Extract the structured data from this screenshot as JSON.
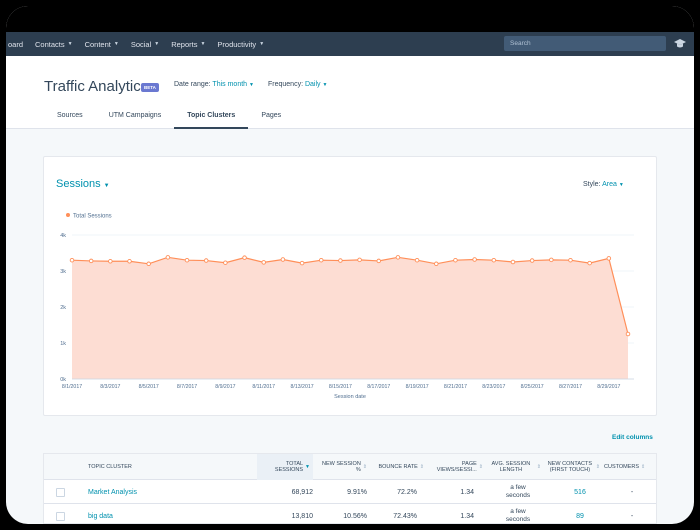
{
  "nav": {
    "items": [
      {
        "label": "oard",
        "caret": false
      },
      {
        "label": "Contacts",
        "caret": true
      },
      {
        "label": "Content",
        "caret": true
      },
      {
        "label": "Social",
        "caret": true
      },
      {
        "label": "Reports",
        "caret": true
      },
      {
        "label": "Productivity",
        "caret": true
      }
    ],
    "search_placeholder": "Search"
  },
  "header": {
    "title": "Traffic Analytics",
    "badge": "BETA",
    "date_range_label": "Date range:",
    "date_range_value": "This month",
    "frequency_label": "Frequency:",
    "frequency_value": "Daily",
    "tabs": [
      {
        "label": "Sources",
        "active": false
      },
      {
        "label": "UTM Campaigns",
        "active": false
      },
      {
        "label": "Topic Clusters",
        "active": true
      },
      {
        "label": "Pages",
        "active": false
      }
    ]
  },
  "card": {
    "title": "Sessions",
    "style_label": "Style:",
    "style_value": "Area"
  },
  "chart_data": {
    "type": "area",
    "legend": "Total Sessions",
    "color": "#ff8f59",
    "fill": "#fdddd3",
    "xlabel": "Session date",
    "yticks": [
      "0k",
      "1k",
      "2k",
      "3k",
      "4k"
    ],
    "ylim": [
      0,
      4000
    ],
    "xticks": [
      "8/1/2017",
      "8/3/2017",
      "8/5/2017",
      "8/7/2017",
      "8/9/2017",
      "8/11/2017",
      "8/13/2017",
      "8/15/2017",
      "8/17/2017",
      "8/19/2017",
      "8/21/2017",
      "8/23/2017",
      "8/25/2017",
      "8/27/2017",
      "8/29/2017"
    ],
    "values": [
      3300,
      3280,
      3270,
      3270,
      3200,
      3380,
      3300,
      3290,
      3230,
      3370,
      3240,
      3320,
      3220,
      3300,
      3290,
      3310,
      3280,
      3380,
      3300,
      3200,
      3300,
      3320,
      3300,
      3250,
      3290,
      3310,
      3300,
      3220,
      3350,
      1250
    ]
  },
  "edit_columns": "Edit columns",
  "table": {
    "headers": {
      "topic": "Topic Cluster",
      "sessions": "Total Sessions",
      "new_session": "New Session %",
      "bounce": "Bounce Rate",
      "pageviews": "Page Views/Sessi...",
      "avg": "Avg. Session Length",
      "contacts": "New Contacts (First Touch)",
      "customers": "Customers"
    },
    "rows": [
      {
        "topic": "Market Analysis",
        "sessions": "68,912",
        "new_session": "9.91%",
        "bounce": "72.2%",
        "pageviews": "1.34",
        "avg_1": "a few",
        "avg_2": "seconds",
        "contacts": "516",
        "customers": "-"
      },
      {
        "topic": "big data",
        "sessions": "13,810",
        "new_session": "10.56%",
        "bounce": "72.43%",
        "pageviews": "1.34",
        "avg_1": "a few",
        "avg_2": "seconds",
        "contacts": "89",
        "customers": "-"
      }
    ]
  },
  "colors": {
    "nav_bg": "#2d3e50",
    "accent": "#0091ae",
    "badge": "#6a78d1"
  }
}
